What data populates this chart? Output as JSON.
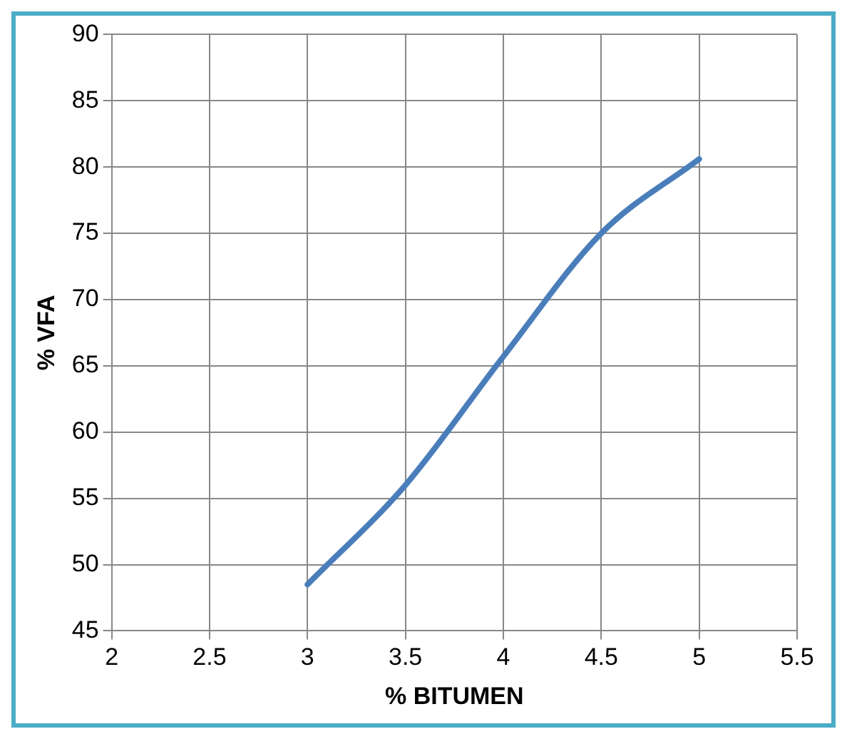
{
  "chart_data": {
    "type": "line",
    "xlabel": "% BITUMEN",
    "ylabel": "% VFA",
    "x": [
      3,
      3.5,
      4,
      4.5,
      5
    ],
    "series": [
      {
        "color": "#4a7ebb",
        "values": [
          48.5,
          56,
          65.7,
          75,
          80.6
        ]
      }
    ],
    "xlim": [
      2,
      5.5
    ],
    "xticks": [
      2,
      2.5,
      3,
      3.5,
      4,
      4.5,
      5,
      5.5
    ],
    "ylim": [
      45,
      90
    ],
    "yticks": [
      45,
      50,
      55,
      60,
      65,
      70,
      75,
      80,
      85,
      90
    ],
    "grid": true,
    "legend": false,
    "marker": "none",
    "line_style": "solid"
  }
}
